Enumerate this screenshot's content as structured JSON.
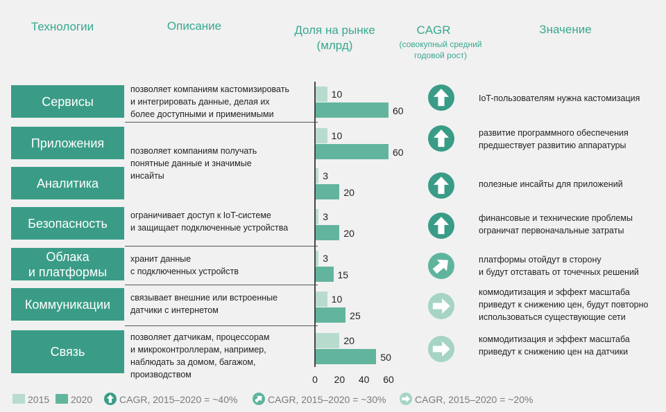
{
  "headers": {
    "tech": "Технологии",
    "desc": "Описание",
    "share_line1": "Доля на рынке",
    "share_line2": "(млрд)",
    "cagr": "CAGR",
    "cagr_sub1": "(совокупный средний",
    "cagr_sub2": "годовой рост)",
    "meaning": "Значение"
  },
  "colors": {
    "accent": "#3a9c87",
    "bar_2015": "#b7dcce",
    "bar_2020": "#62b49d",
    "cagr_40": "#3a9c87",
    "cagr_30": "#5fb49d",
    "cagr_20": "#a5d4c4"
  },
  "rows": [
    {
      "label": "Сервисы",
      "desc": [
        "позволяет компаниям кастомизировать",
        "и интегрировать данные, делая их",
        "более доступными и применимыми"
      ],
      "v2015": 10,
      "v2020": 60,
      "cagr_icon": "arrow-up-icon",
      "cagr_class": "40",
      "meaning": [
        "IoT-пользователям нужна кастомизация"
      ]
    },
    {
      "label": "Приложения",
      "desc": [],
      "v2015": 10,
      "v2020": 60,
      "cagr_icon": "arrow-up-icon",
      "cagr_class": "40",
      "meaning": [
        "развитие программного обеспечения",
        "предшествует развитию аппаратуры"
      ]
    },
    {
      "label": "Аналитика",
      "desc": [],
      "v2015": 3,
      "v2020": 20,
      "cagr_icon": "arrow-up-icon",
      "cagr_class": "40",
      "meaning": [
        "полезные инсайты для приложений"
      ]
    },
    {
      "label": "Безопасность",
      "desc": [
        "ограничивает доступ к IoT-системе",
        "и защищает подключенные устройства"
      ],
      "v2015": 3,
      "v2020": 20,
      "cagr_icon": "arrow-up-icon",
      "cagr_class": "40",
      "meaning": [
        "финансовые и технические проблемы",
        "ограничат первоначальные затраты"
      ]
    },
    {
      "label": "Облака\nи платформы",
      "desc": [
        "хранит данные",
        "с подключенных устройств"
      ],
      "v2015": 3,
      "v2020": 15,
      "cagr_icon": "arrow-diagonal-icon",
      "cagr_class": "30",
      "meaning": [
        "платформы отойдут в сторону",
        "и будут отставать от точечных решений"
      ]
    },
    {
      "label": "Коммуникации",
      "desc": [
        "связывает внешние или встроенные",
        "датчики с интернетом"
      ],
      "v2015": 10,
      "v2020": 25,
      "cagr_icon": "arrow-right-icon",
      "cagr_class": "20",
      "meaning": [
        "коммодитизация и эффект масштаба",
        "приведут к снижению цен, будут повторно",
        "использоваться существующие сети"
      ]
    },
    {
      "label": "Связь",
      "desc": [
        "позволяет датчикам, процессорам",
        "и микроконтроллерам, например,",
        "наблюдать за домом, багажом,",
        "производством"
      ],
      "v2015": 20,
      "v2020": 50,
      "cagr_icon": "arrow-right-icon",
      "cagr_class": "20",
      "meaning": [
        "коммодитизация и эффект масштаба",
        "приведут к снижению цен на датчики"
      ]
    }
  ],
  "shared_desc": [
    "позволяет компаниям получать",
    "понятные данные и значимые",
    "инсайты"
  ],
  "chart_data": {
    "type": "bar",
    "orientation": "horizontal",
    "categories": [
      "Сервисы",
      "Приложения",
      "Аналитика",
      "Безопасность",
      "Облака и платформы",
      "Коммуникации",
      "Связь"
    ],
    "series": [
      {
        "name": "2015",
        "values": [
          10,
          10,
          3,
          3,
          3,
          10,
          20
        ]
      },
      {
        "name": "2020",
        "values": [
          60,
          60,
          20,
          20,
          15,
          25,
          50
        ]
      }
    ],
    "xlabel": "Доля на рынке (млрд)",
    "xlim": [
      0,
      60
    ],
    "xticks": [
      "0",
      "20",
      "40",
      "60"
    ],
    "legend": "bottom-left"
  },
  "legend": {
    "y2015": "2015",
    "y2020": "2020",
    "c40": "CAGR, 2015–2020 = ~40%",
    "c30": "CAGR, 2015–2020 = ~30%",
    "c20": "CAGR, 2015–2020 = ~20%"
  }
}
